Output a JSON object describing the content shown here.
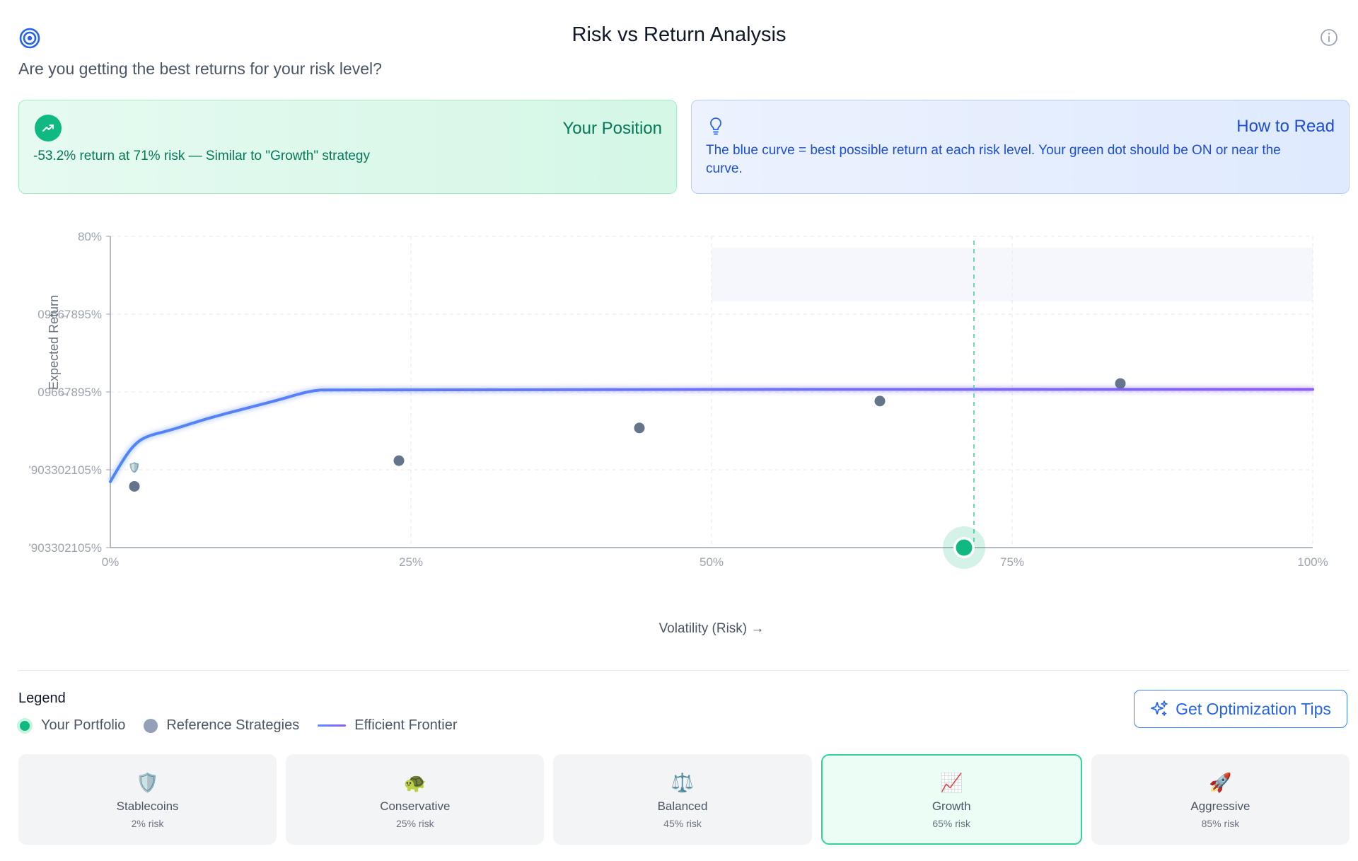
{
  "header": {
    "title": "Risk vs Return Analysis",
    "subtitle": "Are you getting the best returns for your risk level?"
  },
  "position_card": {
    "title": "Your Position",
    "text": "-53.2% return at 71% risk — Similar to \"Growth\" strategy"
  },
  "read_card": {
    "title": "How to Read",
    "text": "The blue curve = best possible return at each risk level. Your green dot should be ON or near the curve."
  },
  "legend": {
    "title": "Legend",
    "items": [
      "Your Portfolio",
      "Reference Strategies",
      "Efficient Frontier"
    ]
  },
  "tips_button": {
    "label": "Get Optimization Tips"
  },
  "strategies": [
    {
      "emoji": "🛡️",
      "name": "Stablecoins",
      "risk": "2% risk",
      "active": false
    },
    {
      "emoji": "🐢",
      "name": "Conservative",
      "risk": "25% risk",
      "active": false
    },
    {
      "emoji": "⚖️",
      "name": "Balanced",
      "risk": "45% risk",
      "active": false
    },
    {
      "emoji": "📈",
      "name": "Growth",
      "risk": "65% risk",
      "active": true
    },
    {
      "emoji": "🚀",
      "name": "Aggressive",
      "risk": "85% risk",
      "active": false
    }
  ],
  "colors": {
    "portfolio": "#10b981",
    "reference": "#64748b",
    "frontier_start": "#4f86f7",
    "frontier_end": "#8b5cf6"
  },
  "chart_data": {
    "type": "scatter",
    "xlabel": "Volatility (Risk) →",
    "ylabel": "Expected Return",
    "x_ticks": [
      "0%",
      "25%",
      "50%",
      "75%",
      "100%"
    ],
    "y_ticks": [
      "80%",
      "0966̶7895%",
      "0966̶7895%",
      "'903302105%",
      "'903302105%"
    ],
    "xlim": [
      0,
      1
    ],
    "ylim": [
      -0.532,
      0.8
    ],
    "grid": true,
    "legend_position": "below",
    "frontier": [
      [
        0.0,
        -0.25
      ],
      [
        0.01,
        -0.16
      ],
      [
        0.02,
        -0.09
      ],
      [
        0.03,
        -0.055
      ],
      [
        0.05,
        -0.03
      ],
      [
        0.08,
        0.02
      ],
      [
        0.11,
        0.06
      ],
      [
        0.14,
        0.1
      ],
      [
        0.16,
        0.13
      ],
      [
        0.17,
        0.14
      ],
      [
        0.18,
        0.145
      ],
      [
        1.0,
        0.145
      ]
    ],
    "series": [
      {
        "name": "Reference Strategies",
        "points": [
          {
            "x": 0.02,
            "y": -0.27
          },
          {
            "x": 0.24,
            "y": -0.16
          },
          {
            "x": 0.44,
            "y": -0.02
          },
          {
            "x": 0.64,
            "y": 0.095
          },
          {
            "x": 0.84,
            "y": 0.17
          }
        ]
      },
      {
        "name": "Your Portfolio",
        "points": [
          {
            "x": 0.71,
            "y": -0.532
          }
        ]
      }
    ]
  }
}
